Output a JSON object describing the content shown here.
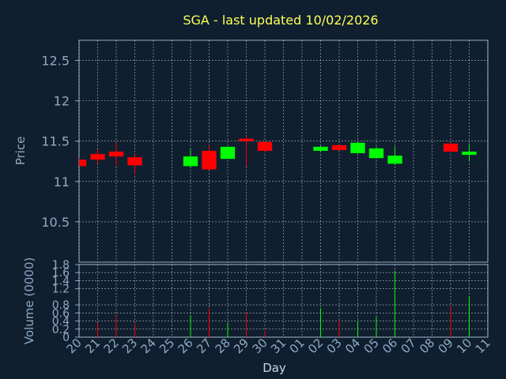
{
  "chart_data": [
    {
      "type": "candlestick",
      "title": "SGA - last updated 10/02/2026",
      "ylabel": "Price",
      "ylim": [
        10.0,
        12.75
      ],
      "yticks": [
        10.5,
        11,
        11.5,
        12,
        12.5
      ],
      "ytick_labels": [
        "10.5",
        "11",
        "11.5",
        "12",
        "12.5"
      ],
      "grid": true,
      "colors": {
        "up": "#00ff00",
        "down": "#ff0000",
        "background": "#0f1f30",
        "grid": "#ffffff",
        "axis": "#8fa9c4",
        "title": "#ffff55"
      },
      "candles": [
        {
          "day": "20",
          "open": 11.27,
          "high": 11.29,
          "low": 11.19,
          "close": 11.19
        },
        {
          "day": "21",
          "open": 11.34,
          "high": 11.4,
          "low": 11.22,
          "close": 11.27
        },
        {
          "day": "22",
          "open": 11.37,
          "high": 11.48,
          "low": 11.19,
          "close": 11.31
        },
        {
          "day": "23",
          "open": 11.3,
          "high": 11.33,
          "low": 11.08,
          "close": 11.2
        },
        {
          "day": "26",
          "open": 11.19,
          "high": 11.4,
          "low": 11.17,
          "close": 11.31
        },
        {
          "day": "27",
          "open": 11.38,
          "high": 11.45,
          "low": 11.14,
          "close": 11.15
        },
        {
          "day": "28",
          "open": 11.28,
          "high": 11.43,
          "low": 11.28,
          "close": 11.43
        },
        {
          "day": "29",
          "open": 11.53,
          "high": 11.55,
          "low": 11.18,
          "close": 11.5
        },
        {
          "day": "30",
          "open": 11.49,
          "high": 11.49,
          "low": 11.37,
          "close": 11.38
        },
        {
          "day": "02",
          "open": 11.38,
          "high": 11.44,
          "low": 11.37,
          "close": 11.43
        },
        {
          "day": "03",
          "open": 11.45,
          "high": 11.45,
          "low": 11.38,
          "close": 11.39
        },
        {
          "day": "04",
          "open": 11.35,
          "high": 11.49,
          "low": 11.35,
          "close": 11.48
        },
        {
          "day": "05",
          "open": 11.29,
          "high": 11.43,
          "low": 11.28,
          "close": 11.41
        },
        {
          "day": "06",
          "open": 11.22,
          "high": 11.43,
          "low": 11.21,
          "close": 11.32
        },
        {
          "day": "09",
          "open": 11.47,
          "high": 11.47,
          "low": 11.37,
          "close": 11.37
        },
        {
          "day": "10",
          "open": 11.33,
          "high": 11.47,
          "low": 11.25,
          "close": 11.37
        }
      ]
    },
    {
      "type": "bar",
      "ylabel": "Volume (0000)",
      "xlabel": "Day",
      "ylim": [
        0,
        1.8
      ],
      "yticks": [
        0,
        0.2,
        0.4,
        0.6,
        0.8,
        1.2,
        1.4,
        1.6,
        1.8
      ],
      "ytick_labels": [
        "0",
        "0.2",
        "0.4",
        "0.6",
        "0.8",
        "1.2",
        "1.4",
        "1.6",
        "1.8"
      ],
      "categories": [
        "20",
        "21",
        "22",
        "23",
        "24",
        "25",
        "26",
        "27",
        "28",
        "29",
        "30",
        "31",
        "01",
        "02",
        "03",
        "04",
        "05",
        "06",
        "07",
        "08",
        "09",
        "10",
        "11"
      ],
      "grid": true,
      "bars": [
        {
          "day": "21",
          "value": 0.35,
          "dir": "down"
        },
        {
          "day": "22",
          "value": 0.52,
          "dir": "down"
        },
        {
          "day": "23",
          "value": 0.33,
          "dir": "down"
        },
        {
          "day": "26",
          "value": 0.55,
          "dir": "up"
        },
        {
          "day": "27",
          "value": 0.72,
          "dir": "down"
        },
        {
          "day": "28",
          "value": 0.35,
          "dir": "up"
        },
        {
          "day": "29",
          "value": 0.62,
          "dir": "down"
        },
        {
          "day": "30",
          "value": 0.17,
          "dir": "down"
        },
        {
          "day": "02",
          "value": 0.72,
          "dir": "up"
        },
        {
          "day": "03",
          "value": 0.42,
          "dir": "down"
        },
        {
          "day": "04",
          "value": 0.4,
          "dir": "up"
        },
        {
          "day": "05",
          "value": 0.5,
          "dir": "up"
        },
        {
          "day": "06",
          "value": 1.65,
          "dir": "up"
        },
        {
          "day": "09",
          "value": 0.78,
          "dir": "down"
        },
        {
          "day": "10",
          "value": 1.02,
          "dir": "up"
        }
      ]
    }
  ]
}
